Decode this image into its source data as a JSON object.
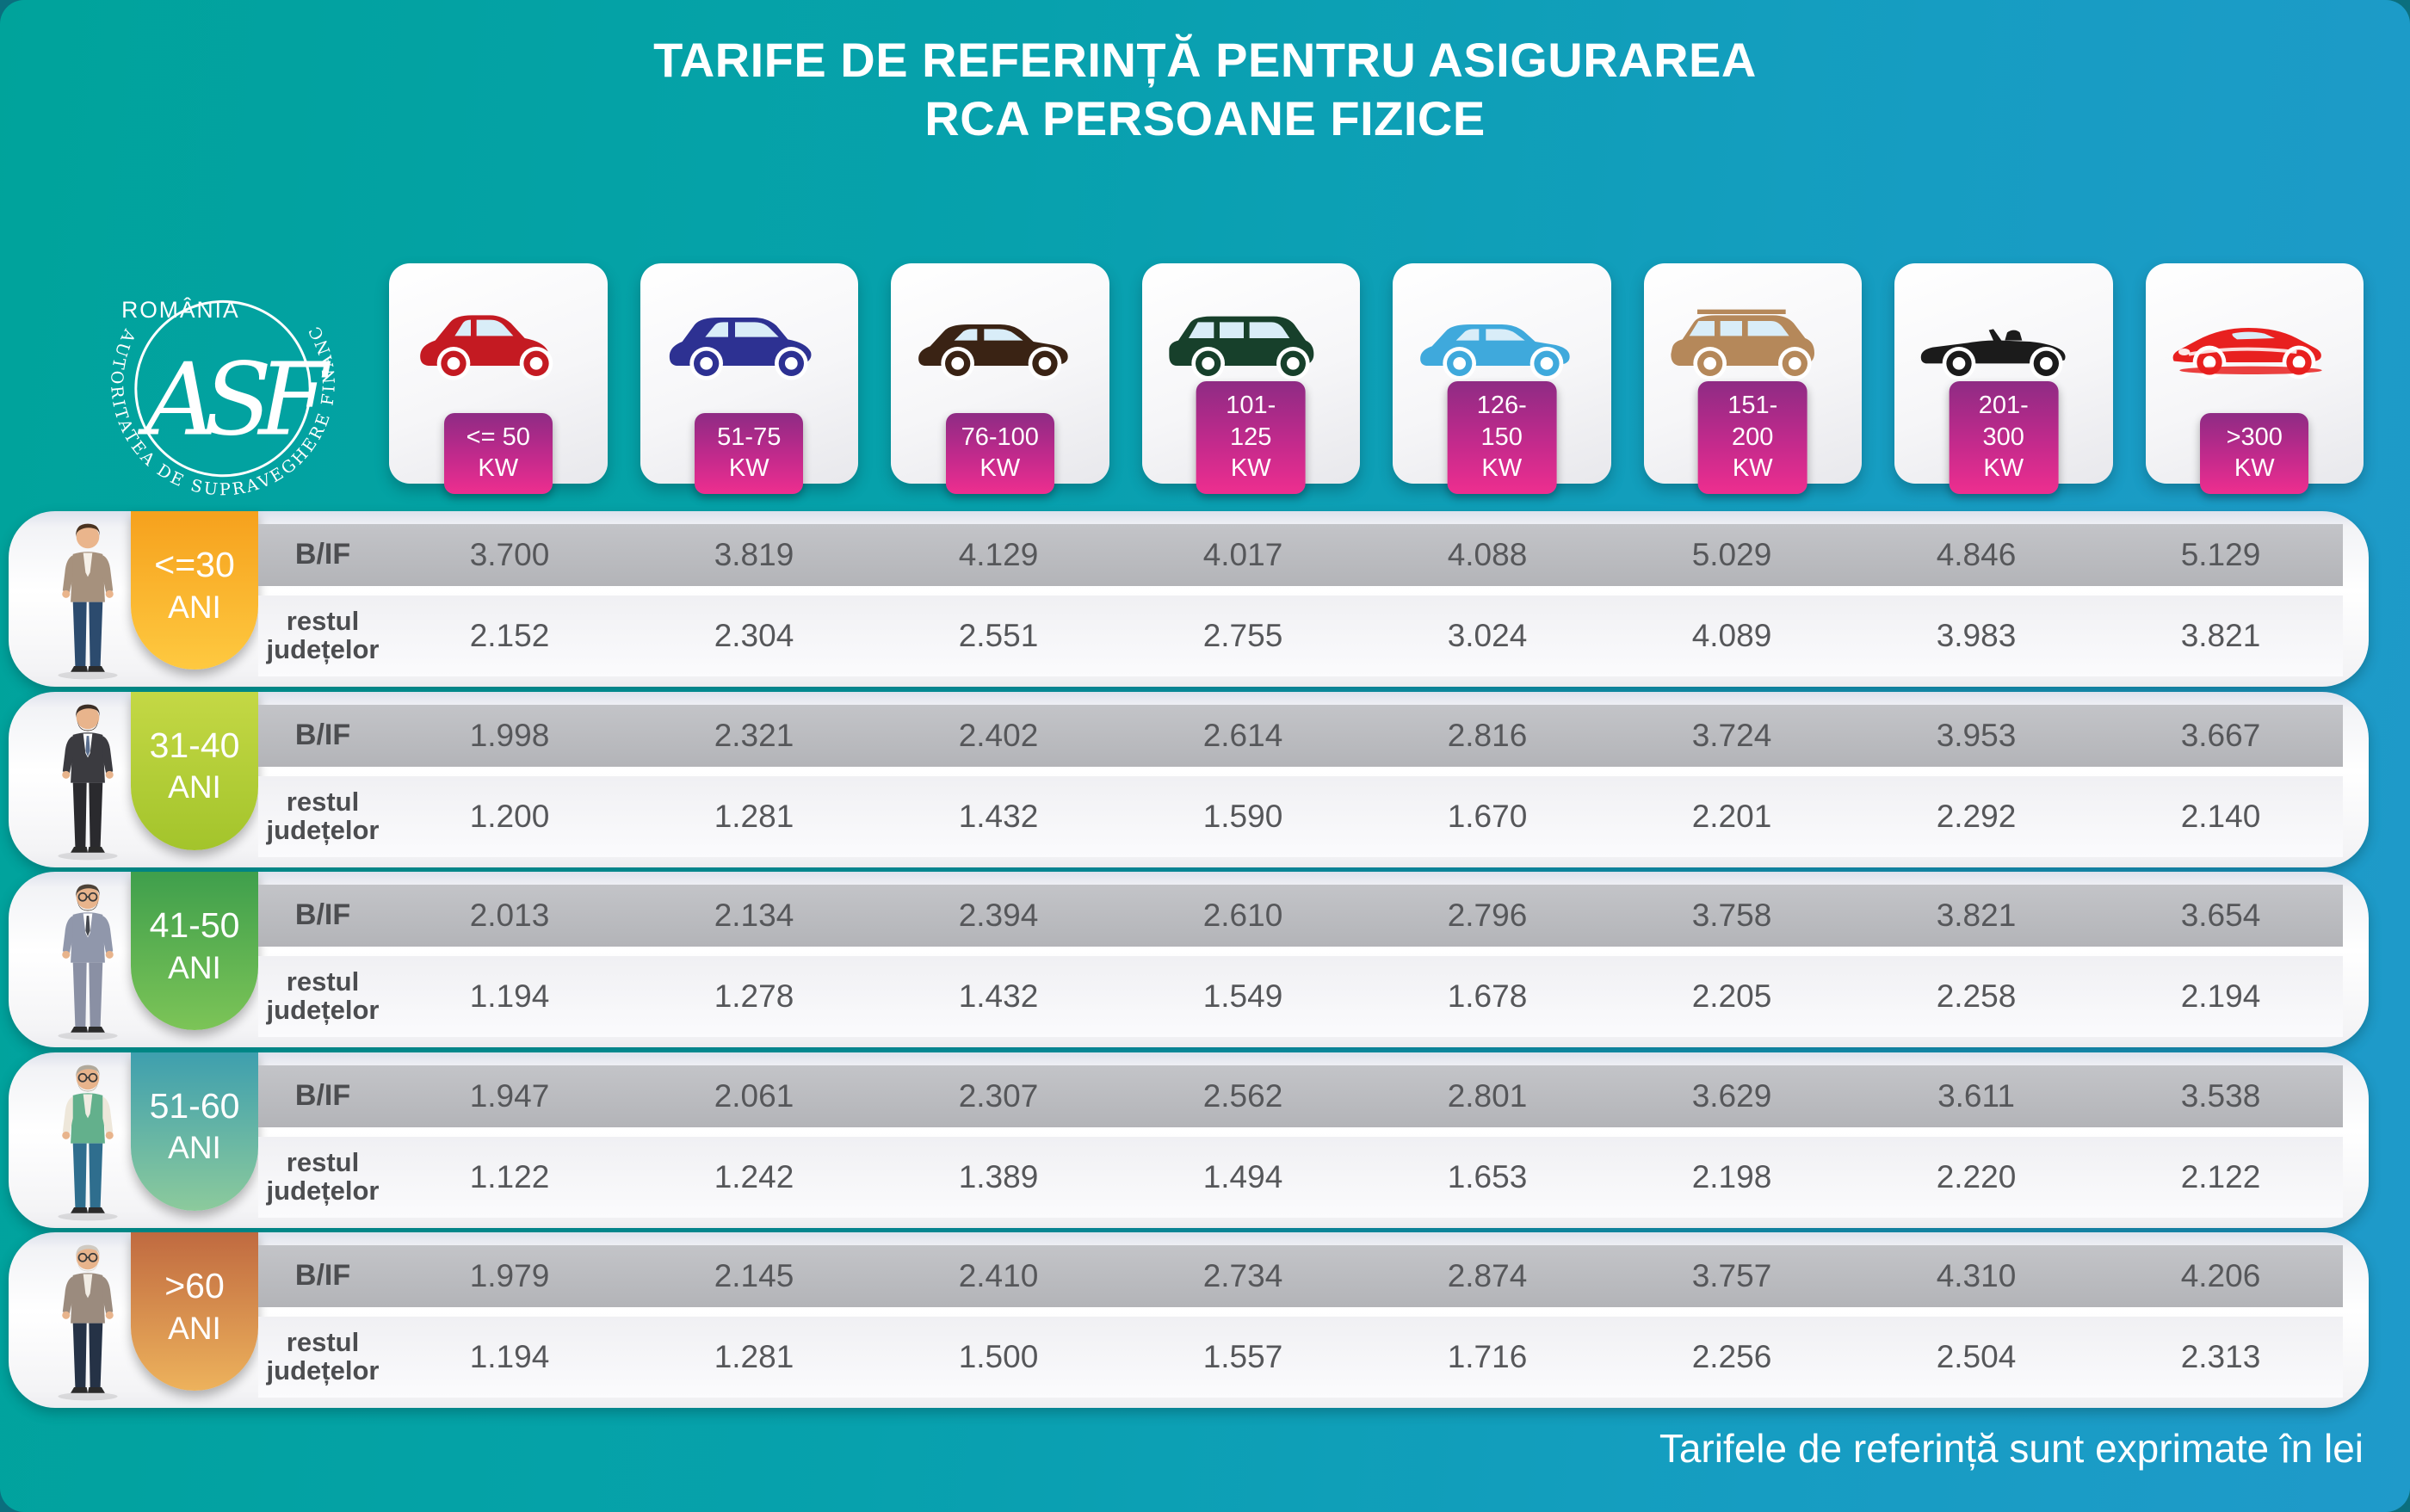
{
  "title": {
    "line1": "TARIFE DE REFERINȚĂ PENTRU ASIGURAREA",
    "line2": "RCA PERSOANE FIZICE"
  },
  "logo": {
    "country": "ROMÂNIA",
    "monogram": "ASF",
    "ring_text": "AUTORITATEA DE SUPRAVEGHERE FINANCIARĂ"
  },
  "footer": {
    "note": "Tarifele de referință sunt exprimate în lei"
  },
  "colors": {
    "background_left": "#00a39b",
    "background_right": "#1f9aca",
    "kw_badge_top": "#8e2b84",
    "kw_badge_bottom": "#ee2e8f",
    "bif_band": "#b7b8bc",
    "value_text": "#56575a"
  },
  "row_labels": {
    "bif": "B/IF",
    "rest": "restul județelor"
  },
  "columns": [
    {
      "power": "<= 50",
      "unit": "KW",
      "icon": "red-city-car-icon",
      "car_type": "city",
      "car_color": "#c41a22"
    },
    {
      "power": "51-75",
      "unit": "KW",
      "icon": "blue-crossover-car-icon",
      "car_type": "crossover",
      "car_color": "#2d3192"
    },
    {
      "power": "76-100",
      "unit": "KW",
      "icon": "brown-sedan-car-icon",
      "car_type": "sedan",
      "car_color": "#3a2314"
    },
    {
      "power": "101-125",
      "unit": "KW",
      "icon": "green-minivan-car-icon",
      "car_type": "minivan",
      "car_color": "#17402b"
    },
    {
      "power": "126-150",
      "unit": "KW",
      "icon": "lightblue-sedan-car-icon",
      "car_type": "sedan",
      "car_color": "#3fa9dc"
    },
    {
      "power": "151-200",
      "unit": "KW",
      "icon": "tan-suv-car-icon",
      "car_type": "suv",
      "car_color": "#b5885a"
    },
    {
      "power": "201-300",
      "unit": "KW",
      "icon": "black-convertible-car-icon",
      "car_type": "convertible",
      "car_color": "#1b1b1b"
    },
    {
      "power": ">300",
      "unit": "KW",
      "icon": "red-sports-car-icon",
      "car_type": "sports",
      "car_color": "#e8201f"
    }
  ],
  "age_groups": [
    {
      "age": "<=30",
      "suffix": "ANI",
      "icon": "young-man-illustration",
      "badge_top": "#f6a11d",
      "badge_bottom": "#fec940",
      "person": {
        "hair": "#4a3320",
        "skin": "#eab58c",
        "top": "#a6917d",
        "shirt": "#f5f0e8",
        "pants": "#2c4b6e",
        "glasses": false,
        "beard": null,
        "tie": null
      },
      "bif": [
        "3.700",
        "3.819",
        "4.129",
        "4.017",
        "4.088",
        "5.029",
        "4.846",
        "5.129"
      ],
      "rest": [
        "2.152",
        "2.304",
        "2.551",
        "2.755",
        "3.024",
        "4.089",
        "3.983",
        "3.821"
      ]
    },
    {
      "age": "31-40",
      "suffix": "ANI",
      "icon": "suit-man-illustration",
      "badge_top": "#c4d845",
      "badge_bottom": "#a3c42b",
      "person": {
        "hair": "#3c2e26",
        "skin": "#e8b48c",
        "top": "#3b3b40",
        "shirt": "#ffffff",
        "pants": "#2a2a2e",
        "glasses": false,
        "beard": "#4a3a30",
        "tie": "#5b6f8f"
      },
      "bif": [
        "1.998",
        "2.321",
        "2.402",
        "2.614",
        "2.816",
        "3.724",
        "3.953",
        "3.667"
      ],
      "rest": [
        "1.200",
        "1.281",
        "1.432",
        "1.590",
        "1.670",
        "2.201",
        "2.292",
        "2.140"
      ]
    },
    {
      "age": "41-50",
      "suffix": "ANI",
      "icon": "glasses-man-illustration",
      "badge_top": "#3f9f4c",
      "badge_bottom": "#7cc457",
      "person": {
        "hair": "#4d4238",
        "skin": "#e8b48c",
        "top": "#9097ab",
        "shirt": "#ffffff",
        "pants": "#8a90a4",
        "glasses": true,
        "beard": "#5c5248",
        "tie": "#45484f"
      },
      "bif": [
        "2.013",
        "2.134",
        "2.394",
        "2.610",
        "2.796",
        "3.758",
        "3.821",
        "3.654"
      ],
      "rest": [
        "1.194",
        "1.278",
        "1.432",
        "1.549",
        "1.678",
        "2.205",
        "2.258",
        "2.194"
      ]
    },
    {
      "age": "51-60",
      "suffix": "ANI",
      "icon": "older-man-vest-illustration",
      "badge_top": "#3e9fae",
      "badge_bottom": "#8cca9c",
      "person": {
        "hair": "#b0a99c",
        "skin": "#e8b48c",
        "top": "#63b08c",
        "sleeves": "#eee7da",
        "shirt": "#efece2",
        "pants": "#2f6e8e",
        "glasses": true,
        "beard": "#b5ae9f",
        "tie": null
      },
      "bif": [
        "1.947",
        "2.061",
        "2.307",
        "2.562",
        "2.801",
        "3.629",
        "3.611",
        "3.538"
      ],
      "rest": [
        "1.122",
        "1.242",
        "1.389",
        "1.494",
        "1.653",
        "2.198",
        "2.220",
        "2.122"
      ]
    },
    {
      "age": ">60",
      "suffix": "ANI",
      "icon": "elderly-man-illustration",
      "badge_top": "#c06a40",
      "badge_bottom": "#edb25c",
      "person": {
        "hair": "#cfcac2",
        "skin": "#e8b48c",
        "top": "#9b8b7e",
        "shirt": "#f1ece4",
        "pants": "#253246",
        "glasses": true,
        "beard": "#d8d4cc",
        "tie": null
      },
      "bif": [
        "1.979",
        "2.145",
        "2.410",
        "2.734",
        "2.874",
        "3.757",
        "4.310",
        "4.206"
      ],
      "rest": [
        "1.194",
        "1.281",
        "1.500",
        "1.557",
        "1.716",
        "2.256",
        "2.504",
        "2.313"
      ]
    }
  ],
  "chart_data": {
    "type": "table",
    "title": "TARIFE DE REFERINȚĂ PENTRU ASIGURAREA RCA PERSOANE FIZICE",
    "unit": "lei",
    "note": "Tarifele de referință sunt exprimate în lei",
    "columns_kw": [
      "<=50",
      "51-75",
      "76-100",
      "101-125",
      "126-150",
      "151-200",
      "201-300",
      ">300"
    ],
    "rows": [
      {
        "age": "<=30 ANI",
        "region": "B/IF",
        "values": [
          3700,
          3819,
          4129,
          4017,
          4088,
          5029,
          4846,
          5129
        ]
      },
      {
        "age": "<=30 ANI",
        "region": "restul județelor",
        "values": [
          2152,
          2304,
          2551,
          2755,
          3024,
          4089,
          3983,
          3821
        ]
      },
      {
        "age": "31-40 ANI",
        "region": "B/IF",
        "values": [
          1998,
          2321,
          2402,
          2614,
          2816,
          3724,
          3953,
          3667
        ]
      },
      {
        "age": "31-40 ANI",
        "region": "restul județelor",
        "values": [
          1200,
          1281,
          1432,
          1590,
          1670,
          2201,
          2292,
          2140
        ]
      },
      {
        "age": "41-50 ANI",
        "region": "B/IF",
        "values": [
          2013,
          2134,
          2394,
          2610,
          2796,
          3758,
          3821,
          3654
        ]
      },
      {
        "age": "41-50 ANI",
        "region": "restul județelor",
        "values": [
          1194,
          1278,
          1432,
          1549,
          1678,
          2205,
          2258,
          2194
        ]
      },
      {
        "age": "51-60 ANI",
        "region": "B/IF",
        "values": [
          1947,
          2061,
          2307,
          2562,
          2801,
          3629,
          3611,
          3538
        ]
      },
      {
        "age": "51-60 ANI",
        "region": "restul județelor",
        "values": [
          1122,
          1242,
          1389,
          1494,
          1653,
          2198,
          2220,
          2122
        ]
      },
      {
        "age": ">60 ANI",
        "region": "B/IF",
        "values": [
          1979,
          2145,
          2410,
          2734,
          2874,
          3757,
          4310,
          4206
        ]
      },
      {
        "age": ">60 ANI",
        "region": "restul județelor",
        "values": [
          1194,
          1281,
          1500,
          1557,
          1716,
          2256,
          2504,
          2313
        ]
      }
    ]
  }
}
